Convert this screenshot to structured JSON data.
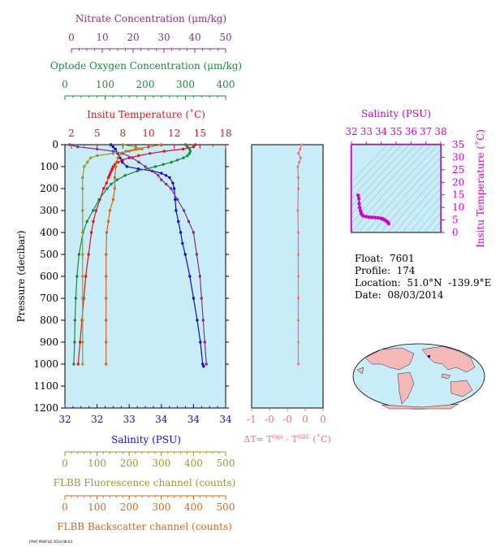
{
  "info": {
    "float": "Float:  7601",
    "profile": "Profile:  174",
    "location": "Location:  51.0°N  -139.9°E",
    "date": "Date:  08/03/2014"
  },
  "footnote": "FMAT PROFILE 2014-08-03",
  "colors": {
    "nitrate": "#8b2c8b",
    "oxygen": "#1a8a3a",
    "temperature": "#e8101a",
    "salinity": "#1010cc",
    "fluorescence": "#9a9a2a",
    "backscatter": "#d2691e",
    "delta_t": "#f07070",
    "ts_axis": "#d000d0",
    "plot_bg": "#c8ecf8",
    "land": "#f4b8b8",
    "ocean": "#c8ecf8"
  },
  "chart_data": [
    {
      "type": "line",
      "name": "main-profile",
      "yaxis": {
        "label": "Pressure (decibar)",
        "range": [
          0,
          1200
        ],
        "ticks": [
          "0",
          "100",
          "200",
          "300",
          "400",
          "500",
          "600",
          "700",
          "800",
          "900",
          "1000",
          "1100",
          "1200"
        ],
        "reversed": true
      },
      "axes": {
        "nitrate": {
          "label": "Nitrate Concentration (μm/kg)",
          "range": [
            0,
            50
          ],
          "ticks": [
            "0",
            "10",
            "20",
            "30",
            "40",
            "50"
          ]
        },
        "oxygen": {
          "label": "Optode Oxygen Concentration (μm/kg)",
          "range": [
            0,
            400
          ],
          "ticks": [
            "0",
            "100",
            "200",
            "300",
            "400"
          ]
        },
        "temperature": {
          "label": "Insitu Temperature (˚C)",
          "range": [
            1,
            18
          ],
          "ticks": [
            "2",
            "5",
            "8",
            "10",
            "12",
            "15",
            "18"
          ]
        },
        "salinity": {
          "label": "Salinity (PSU)",
          "range": [
            31.5,
            35.0
          ],
          "ticks": [
            "32",
            "32",
            "33",
            "34",
            "34",
            "34"
          ]
        },
        "fluorescence": {
          "label": "FLBB Fluorescence channel (counts)",
          "range": [
            0,
            500
          ],
          "ticks": [
            "0",
            "100",
            "200",
            "300",
            "400",
            "500"
          ]
        },
        "backscatter": {
          "label": "FLBB Backscatter channel (counts)",
          "range": [
            0,
            500
          ],
          "ticks": [
            "0",
            "100",
            "200",
            "300",
            "400",
            "500"
          ]
        }
      },
      "series": [
        {
          "key": "temperature",
          "pressure": [
            0,
            10,
            20,
            30,
            40,
            50,
            60,
            70,
            80,
            90,
            100,
            110,
            120,
            130,
            140,
            150,
            175,
            200,
            250,
            300,
            350,
            400,
            500,
            600,
            700,
            800,
            900,
            1000
          ],
          "values": [
            14.8,
            14.6,
            13.5,
            11.5,
            10.0,
            8.8,
            7.8,
            7.1,
            6.6,
            6.3,
            6.1,
            6.0,
            5.9,
            5.8,
            5.7,
            5.6,
            5.4,
            5.1,
            4.7,
            4.3,
            4.0,
            3.8,
            3.5,
            3.2,
            3.0,
            2.8,
            2.6,
            2.4
          ]
        },
        {
          "key": "salinity",
          "pressure": [
            0,
            10,
            20,
            40,
            60,
            80,
            100,
            110,
            120,
            130,
            140,
            150,
            175,
            200,
            250,
            300,
            350,
            400,
            450,
            500,
            600,
            700,
            800,
            900,
            1000,
            1010
          ],
          "values": [
            32.5,
            32.55,
            32.6,
            32.65,
            32.7,
            32.75,
            32.85,
            33.1,
            33.4,
            33.6,
            33.7,
            33.78,
            33.85,
            33.88,
            33.9,
            33.92,
            33.97,
            34.02,
            34.06,
            34.12,
            34.22,
            34.3,
            34.38,
            34.45,
            34.5,
            34.52
          ]
        },
        {
          "key": "oxygen",
          "pressure": [
            0,
            10,
            20,
            30,
            40,
            50,
            60,
            70,
            80,
            90,
            100,
            120,
            140,
            160,
            180,
            200,
            250,
            300,
            350,
            400,
            500,
            600,
            700,
            800,
            900,
            1000
          ],
          "values": [
            300,
            305,
            310,
            312,
            310,
            305,
            295,
            280,
            265,
            245,
            225,
            180,
            150,
            130,
            115,
            105,
            85,
            70,
            55,
            45,
            35,
            30,
            27,
            25,
            24,
            22
          ]
        },
        {
          "key": "nitrate",
          "pressure": [
            0,
            10,
            20,
            30,
            40,
            60,
            80,
            100,
            120,
            140,
            160,
            180,
            200,
            250,
            300,
            350,
            400,
            500,
            600,
            700,
            800,
            900,
            1000
          ],
          "values": [
            1.5,
            4,
            10,
            15,
            18,
            21,
            23,
            25,
            27,
            29,
            30,
            31.5,
            33,
            35,
            37,
            38.5,
            40,
            41,
            42,
            42.5,
            43,
            43.5,
            44
          ]
        },
        {
          "key": "fluorescence",
          "pressure": [
            0,
            10,
            20,
            30,
            40,
            50,
            60,
            80,
            100,
            150,
            200,
            300,
            400,
            500,
            600,
            700,
            800,
            900,
            1000
          ],
          "values": [
            180,
            220,
            240,
            200,
            150,
            100,
            80,
            70,
            60,
            55,
            55,
            55,
            55,
            55,
            55,
            55,
            55,
            55,
            55
          ]
        },
        {
          "key": "backscatter",
          "pressure": [
            0,
            10,
            20,
            30,
            40,
            60,
            80,
            100,
            150,
            200,
            250,
            300,
            350,
            400,
            500,
            600,
            700,
            800,
            900,
            1000
          ],
          "values": [
            300,
            260,
            220,
            190,
            175,
            165,
            160,
            158,
            155,
            155,
            150,
            140,
            135,
            130,
            128,
            128,
            128,
            128,
            128,
            128
          ]
        },
        {
          "key": "delta_t",
          "pressure": [
            0,
            20,
            40,
            60,
            80,
            100,
            150,
            200,
            300,
            400,
            500,
            600,
            700,
            800,
            900,
            1000
          ],
          "values": [
            0.05,
            0.02,
            -0.02,
            0.03,
            0.0,
            -0.03,
            -0.02,
            -0.02,
            -0.03,
            -0.02,
            -0.02,
            -0.02,
            -0.02,
            -0.02,
            -0.02,
            -0.02
          ]
        }
      ],
      "delta_axis": {
        "label": "ΔT= T",
        "sup1": "Opt",
        "mid": " - T",
        "sup2": "SBE",
        "unit": " (˚C)",
        "range": [
          -1,
          0.5
        ],
        "ticks": [
          "-1",
          "-0",
          "-0",
          "0",
          "0"
        ]
      }
    },
    {
      "type": "scatter",
      "name": "ts-diagram",
      "title": "Salinity (PSU)",
      "xaxis": {
        "range": [
          32,
          38
        ],
        "ticks": [
          "32",
          "33",
          "34",
          "35",
          "36",
          "37",
          "38"
        ]
      },
      "yaxis": {
        "label": "Insitu Temperature (˚C)",
        "range": [
          0,
          35
        ],
        "ticks": [
          "0",
          "5",
          "10",
          "15",
          "20",
          "25",
          "30",
          "35"
        ]
      },
      "points": {
        "salinity": [
          32.45,
          32.5,
          32.52,
          32.55,
          32.6,
          32.65,
          32.7,
          32.8,
          33.0,
          33.2,
          33.4,
          33.6,
          33.8,
          34.0,
          34.1,
          34.2,
          34.3,
          34.4,
          34.45,
          34.5
        ],
        "temperature": [
          14.8,
          13.5,
          11.5,
          10.0,
          8.8,
          7.8,
          7.1,
          6.6,
          6.3,
          6.1,
          6.0,
          5.9,
          5.8,
          5.6,
          5.4,
          5.1,
          4.7,
          4.3,
          4.0,
          3.5
        ]
      }
    }
  ]
}
